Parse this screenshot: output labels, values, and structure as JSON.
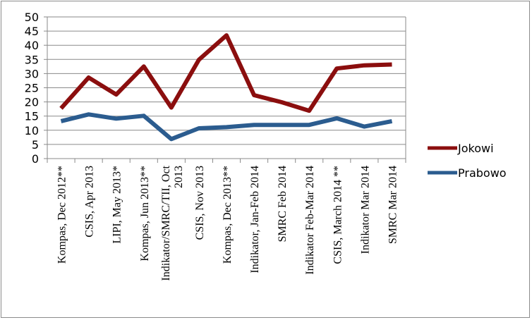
{
  "chart_data": {
    "type": "line",
    "title": "",
    "xlabel": "",
    "ylabel": "",
    "ylim": [
      0,
      50
    ],
    "ytick_step": 5,
    "grid": true,
    "legend_position": "right",
    "categories": [
      "Kompas, Dec 2012**",
      "CSIS, Apr 2013",
      "LIPI, May 2013*",
      "Kompas, Jun 2013**",
      "Indikator/SMRC/TII, Oct 2013",
      "CSIS, Nov 2013",
      "Kompas, Dec 2013**",
      "Indikator, Jan-Feb 2014",
      "SMRC Feb 2014",
      "Indikator Feb-Mar 2014",
      "CSIS, March 2014 **",
      "Indikator Mar 2014",
      "SMRC Mar 2014"
    ],
    "series": [
      {
        "name": "Jokowi",
        "color": "#8b0e0e",
        "values": [
          17.7,
          28.6,
          22.6,
          32.5,
          18.0,
          34.9,
          43.5,
          22.4,
          19.9,
          16.9,
          31.8,
          32.9,
          33.2
        ]
      },
      {
        "name": "Prabowo",
        "color": "#2b5c8f",
        "values": [
          13.2,
          15.6,
          14.1,
          15.1,
          6.9,
          10.7,
          11.1,
          11.9,
          11.9,
          11.9,
          14.2,
          11.3,
          13.2
        ]
      }
    ]
  }
}
